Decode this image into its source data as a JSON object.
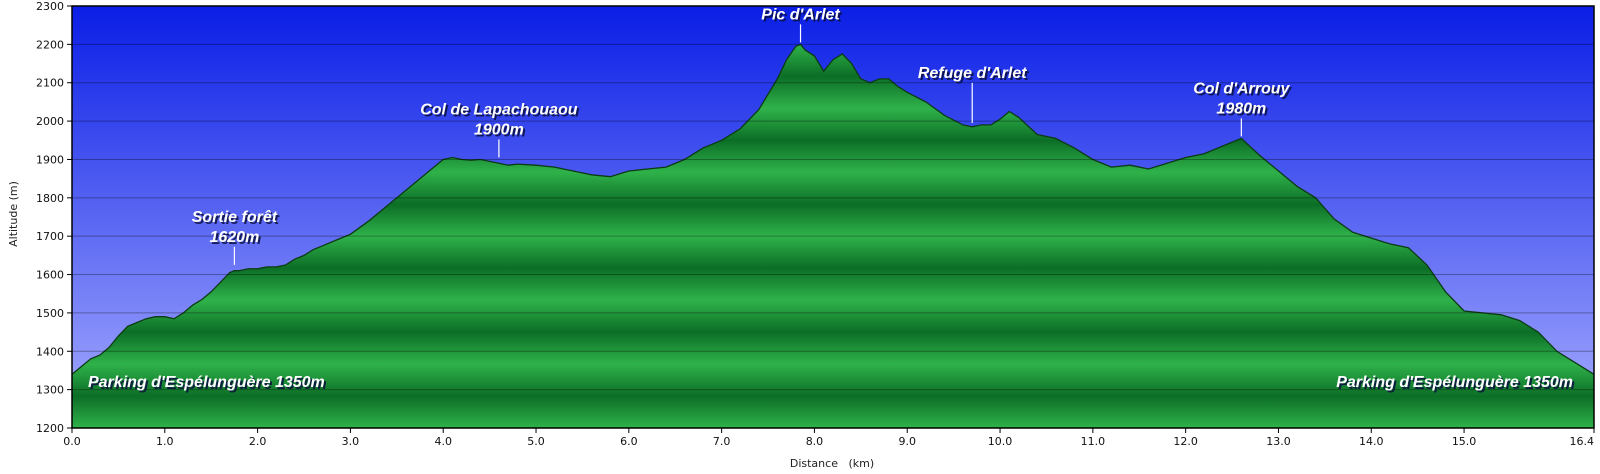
{
  "chart_data": {
    "type": "area",
    "title": "",
    "xlabel": "Distance   (km)",
    "ylabel": "Altitude (m)",
    "xlim": [
      0,
      16.4
    ],
    "ylim": [
      1200,
      2300
    ],
    "x_ticks": [
      "0.0",
      "1.0",
      "2.0",
      "3.0",
      "4.0",
      "5.0",
      "6.0",
      "7.0",
      "8.0",
      "9.0",
      "10.0",
      "11.0",
      "12.0",
      "13.0",
      "14.0",
      "15.0",
      "16.4"
    ],
    "x_tick_values": [
      0,
      1,
      2,
      3,
      4,
      5,
      6,
      7,
      8,
      9,
      10,
      11,
      12,
      13,
      14,
      15,
      16.4
    ],
    "y_ticks": [
      "1200",
      "1300",
      "1400",
      "1500",
      "1600",
      "1700",
      "1800",
      "1900",
      "2000",
      "2100",
      "2200",
      "2300"
    ],
    "y_tick_values": [
      1200,
      1300,
      1400,
      1500,
      1600,
      1700,
      1800,
      1900,
      2000,
      2100,
      2200,
      2300
    ],
    "grid": true,
    "colors": {
      "sky_top": "#0a1ee6",
      "sky_bottom": "#a8aeff",
      "fill_dark": "#0c6e26",
      "fill_light": "#2fb24a"
    },
    "series": [
      {
        "x": [
          0,
          0.1,
          0.2,
          0.3,
          0.4,
          0.5,
          0.6,
          0.7,
          0.8,
          0.9,
          1.0,
          1.1,
          1.2,
          1.3,
          1.4,
          1.5,
          1.6,
          1.7,
          1.75,
          1.8,
          1.9,
          2.0,
          2.1,
          2.2,
          2.3,
          2.4,
          2.5,
          2.6,
          2.7,
          2.8,
          2.9,
          3.0,
          3.2,
          3.4,
          3.6,
          3.8,
          4.0,
          4.1,
          4.2,
          4.3,
          4.4,
          4.5,
          4.6,
          4.7,
          4.8,
          5.0,
          5.2,
          5.4,
          5.6,
          5.8,
          6.0,
          6.2,
          6.4,
          6.6,
          6.8,
          7.0,
          7.2,
          7.4,
          7.6,
          7.7,
          7.8,
          7.85,
          7.9,
          8.0,
          8.1,
          8.2,
          8.3,
          8.4,
          8.5,
          8.6,
          8.7,
          8.8,
          8.9,
          9.0,
          9.2,
          9.4,
          9.6,
          9.7,
          9.8,
          9.9,
          10.0,
          10.1,
          10.2,
          10.4,
          10.6,
          10.8,
          11.0,
          11.2,
          11.4,
          11.6,
          11.8,
          12.0,
          12.2,
          12.4,
          12.6,
          12.8,
          13.0,
          13.2,
          13.4,
          13.6,
          13.8,
          14.0,
          14.2,
          14.4,
          14.6,
          14.8,
          15.0,
          15.2,
          15.4,
          15.6,
          15.8,
          16.0,
          16.2,
          16.4
        ],
        "y": [
          1340,
          1360,
          1380,
          1390,
          1410,
          1440,
          1465,
          1475,
          1485,
          1490,
          1490,
          1485,
          1500,
          1520,
          1535,
          1555,
          1580,
          1605,
          1610,
          1610,
          1615,
          1615,
          1620,
          1620,
          1625,
          1640,
          1650,
          1665,
          1675,
          1685,
          1695,
          1705,
          1740,
          1780,
          1820,
          1860,
          1900,
          1905,
          1900,
          1898,
          1900,
          1895,
          1890,
          1885,
          1888,
          1885,
          1880,
          1870,
          1860,
          1855,
          1870,
          1875,
          1880,
          1900,
          1930,
          1950,
          1980,
          2030,
          2110,
          2160,
          2195,
          2200,
          2185,
          2170,
          2130,
          2160,
          2175,
          2150,
          2110,
          2100,
          2110,
          2110,
          2090,
          2075,
          2050,
          2015,
          1990,
          1985,
          1990,
          1990,
          2005,
          2025,
          2010,
          1965,
          1955,
          1930,
          1900,
          1880,
          1885,
          1875,
          1890,
          1905,
          1915,
          1935,
          1955,
          1910,
          1870,
          1830,
          1800,
          1745,
          1710,
          1695,
          1680,
          1670,
          1625,
          1555,
          1505,
          1500,
          1495,
          1480,
          1450,
          1400,
          1370,
          1340
        ]
      }
    ],
    "annotations": [
      {
        "lines": [
          "Sortie forêt",
          "1620m"
        ],
        "x": 1.75,
        "y": 1620
      },
      {
        "lines": [
          "Col de Lapachouaou",
          "1900m"
        ],
        "x": 4.6,
        "y": 1900
      },
      {
        "lines": [
          "Pic d'Arlet"
        ],
        "x": 7.85,
        "y": 2200
      },
      {
        "lines": [
          "Refuge d'Arlet"
        ],
        "x": 9.7,
        "y": 1990
      },
      {
        "lines": [
          "Col d'Arrouy",
          "1980m"
        ],
        "x": 12.6,
        "y": 1955
      }
    ],
    "corner_labels": {
      "left": "Parking d'Espélunguère 1350m",
      "right": "Parking d'Espélunguère 1350m"
    }
  }
}
